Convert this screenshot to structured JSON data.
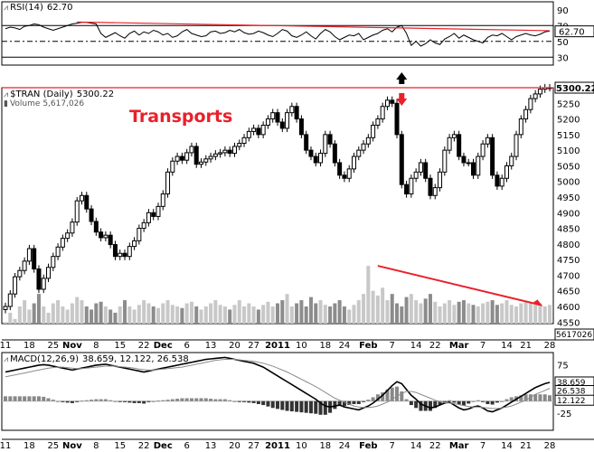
{
  "rsi": {
    "label": "RSI(14)",
    "value": "62.70",
    "ticks": [
      "90",
      "70",
      "50",
      "30"
    ],
    "tag": "62.70"
  },
  "price": {
    "label": "$TRAN (Daily)",
    "value": "5300.22",
    "tag": "5300.22",
    "volume_label": "Volume",
    "volume_value": "5,617,026",
    "volume_tag": "5617026",
    "annotation": "Transports",
    "ticks": [
      "5250",
      "5200",
      "5150",
      "5100",
      "5050",
      "5000",
      "4950",
      "4900",
      "4850",
      "4800",
      "4750",
      "4700",
      "4650",
      "4600",
      "4550"
    ]
  },
  "macd": {
    "label": "MACD(12,26,9)",
    "values": "38.659, 12.122, 26.538",
    "ticks": [
      "75",
      "25",
      "-25"
    ],
    "tags": [
      "38.659",
      "26.538",
      "12.122"
    ]
  },
  "xaxis": {
    "labels": [
      "11",
      "18",
      "25",
      "Nov",
      "8",
      "15",
      "22",
      "Dec",
      "6",
      "13",
      "20",
      "27",
      "2011",
      "10",
      "18",
      "24",
      "Feb",
      "7",
      "14",
      "22",
      "Mar",
      "7",
      "14",
      "21",
      "28"
    ]
  },
  "colors": {
    "resistance": "#e8212b",
    "up": "#ffffff",
    "down": "#000000",
    "volume_up": "#c8c8c8",
    "volume_down": "#8c8c8c",
    "macd_line": "#000000",
    "signal_line": "#8c8c8c",
    "arrow_up": "#000000",
    "arrow_down": "#e8212b"
  },
  "chart_data": [
    {
      "type": "line",
      "name": "RSI(14)",
      "ylim": [
        20,
        100
      ],
      "x_range": [
        0,
        114
      ],
      "values": [
        66,
        68,
        67,
        65,
        69,
        70,
        72,
        71,
        68,
        66,
        64,
        66,
        68,
        70,
        72,
        73,
        74,
        74,
        73,
        72,
        60,
        55,
        58,
        61,
        57,
        54,
        60,
        63,
        58,
        62,
        60,
        64,
        62,
        58,
        60,
        55,
        57,
        62,
        65,
        60,
        58,
        56,
        57,
        62,
        63,
        60,
        61,
        64,
        62,
        65,
        61,
        59,
        60,
        63,
        61,
        58,
        56,
        60,
        65,
        63,
        57,
        55,
        58,
        62,
        57,
        53,
        60,
        65,
        62,
        56,
        52,
        55,
        58,
        57,
        60,
        52,
        55,
        58,
        60,
        64,
        66,
        62,
        68,
        70,
        60,
        45,
        50,
        44,
        47,
        52,
        48,
        46,
        53,
        56,
        60,
        54,
        58,
        55,
        52,
        50,
        48,
        55,
        58,
        57,
        60,
        56,
        52,
        56,
        58,
        60,
        58,
        57,
        59,
        62,
        63
      ]
    },
    {
      "type": "candlestick",
      "name": "$TRAN (Daily)",
      "ylim": [
        4545,
        5300
      ],
      "x_range": [
        0,
        114
      ],
      "close": [
        4600,
        4640,
        4695,
        4715,
        4745,
        4785,
        4720,
        4655,
        4690,
        4725,
        4760,
        4790,
        4818,
        4835,
        4870,
        4938,
        4955,
        4912,
        4872,
        4838,
        4820,
        4828,
        4798,
        4760,
        4770,
        4760,
        4792,
        4810,
        4850,
        4868,
        4900,
        4888,
        4920,
        4960,
        5030,
        5065,
        5080,
        5068,
        5092,
        5112,
        5055,
        5062,
        5072,
        5080,
        5088,
        5092,
        5100,
        5090,
        5112,
        5122,
        5140,
        5160,
        5170,
        5150,
        5180,
        5200,
        5220,
        5190,
        5170,
        5220,
        5240,
        5200,
        5150,
        5100,
        5080,
        5060,
        5090,
        5150,
        5120,
        5060,
        5020,
        5010,
        5040,
        5080,
        5100,
        5120,
        5140,
        5180,
        5200,
        5240,
        5260,
        5250,
        5150,
        4990,
        4960,
        5010,
        5030,
        5060,
        5010,
        4955,
        4980,
        5030,
        5100,
        5140,
        5150,
        5080,
        5060,
        5060,
        5020,
        5080,
        5120,
        5140,
        5020,
        4985,
        5010,
        5050,
        5080,
        5150,
        5200,
        5230,
        5265,
        5280,
        5295,
        5300,
        5300
      ],
      "volume": [
        4550,
        4580,
        4560,
        4600,
        4620,
        4590,
        4610,
        4640,
        4600,
        4580,
        4610,
        4620,
        4600,
        4590,
        4610,
        4630,
        4620,
        4600,
        4590,
        4610,
        4615,
        4600,
        4590,
        4580,
        4600,
        4620,
        4600,
        4590,
        4605,
        4620,
        4610,
        4600,
        4595,
        4610,
        4620,
        4605,
        4600,
        4595,
        4610,
        4615,
        4600,
        4590,
        4600,
        4610,
        4620,
        4605,
        4600,
        4590,
        4605,
        4620,
        4600,
        4610,
        4600,
        4590,
        4605,
        4615,
        4600,
        4610,
        4620,
        4640,
        4600,
        4610,
        4620,
        4600,
        4630,
        4610,
        4620,
        4605,
        4600,
        4610,
        4620,
        4600,
        4590,
        4605,
        4620,
        4640,
        4730,
        4650,
        4635,
        4660,
        4620,
        4640,
        4610,
        4600,
        4630,
        4640,
        4620,
        4610,
        4625,
        4640,
        4615,
        4600,
        4610,
        4620,
        4605,
        4615,
        4620,
        4610,
        4605,
        4600,
        4610,
        4615,
        4620,
        4605,
        4610,
        4620,
        4605,
        4600,
        4610,
        4615,
        4610,
        4605,
        4610,
        4600,
        4605
      ]
    },
    {
      "type": "line",
      "name": "MACD(12,26,9)",
      "ylim": [
        -60,
        100
      ],
      "x_range": [
        0,
        114
      ],
      "series": [
        {
          "name": "MACD",
          "values": [
            60,
            62,
            64,
            66,
            68,
            70,
            72,
            74,
            75,
            74,
            72,
            70,
            68,
            66,
            64,
            66,
            68,
            70,
            72,
            74,
            75,
            76,
            74,
            72,
            70,
            68,
            66,
            64,
            62,
            60,
            62,
            64,
            66,
            68,
            70,
            72,
            74,
            76,
            78,
            80,
            82,
            84,
            86,
            87,
            88,
            89,
            90,
            88,
            86,
            84,
            82,
            80,
            78,
            74,
            70,
            64,
            58,
            52,
            46,
            40,
            34,
            28,
            22,
            16,
            10,
            4,
            -4,
            -10,
            -12,
            -10,
            -8,
            -12,
            -14,
            -16,
            -18,
            -14,
            -10,
            -4,
            4,
            12,
            22,
            32,
            40,
            36,
            24,
            12,
            4,
            -6,
            -10,
            -14,
            -12,
            -8,
            -4,
            -2,
            -8,
            -14,
            -18,
            -16,
            -12,
            -10,
            -14,
            -20,
            -22,
            -18,
            -14,
            -8,
            -2,
            4,
            10,
            16,
            22,
            28,
            32,
            36,
            38.659
          ]
        },
        {
          "name": "Signal",
          "values": [
            50,
            52,
            54,
            56,
            58,
            60,
            62,
            64,
            66,
            68,
            69,
            70,
            70,
            69,
            68,
            67,
            67,
            68,
            69,
            70,
            71,
            72,
            72,
            72,
            71,
            70,
            69,
            68,
            66,
            65,
            64,
            64,
            65,
            66,
            67,
            68,
            69,
            70,
            72,
            74,
            76,
            78,
            80,
            82,
            84,
            85,
            86,
            86,
            86,
            85,
            84,
            83,
            82,
            80,
            78,
            75,
            72,
            68,
            64,
            60,
            55,
            50,
            45,
            40,
            35,
            30,
            24,
            18,
            12,
            6,
            2,
            -2,
            -6,
            -10,
            -12,
            -13,
            -13,
            -12,
            -10,
            -6,
            -2,
            4,
            10,
            16,
            20,
            20,
            18,
            14,
            10,
            6,
            2,
            -1,
            -3,
            -4,
            -5,
            -7,
            -9,
            -11,
            -12,
            -12,
            -13,
            -14,
            -15,
            -15,
            -14,
            -12,
            -10,
            -6,
            -2,
            2,
            8,
            14,
            18,
            22,
            26.538
          ]
        }
      ],
      "histogram": [
        10,
        10,
        10,
        10,
        10,
        10,
        10,
        10,
        9,
        6,
        3,
        0,
        -2,
        -3,
        -4,
        -1,
        1,
        2,
        3,
        4,
        4,
        4,
        2,
        0,
        -1,
        -2,
        -3,
        -4,
        -4,
        -5,
        -2,
        0,
        1,
        2,
        3,
        4,
        5,
        6,
        6,
        6,
        6,
        6,
        6,
        5,
        4,
        4,
        4,
        2,
        0,
        -1,
        -2,
        -3,
        -4,
        -6,
        -8,
        -11,
        -14,
        -16,
        -18,
        -20,
        -21,
        -22,
        -23,
        -24,
        -25,
        -26,
        -28,
        -28,
        -24,
        -16,
        -10,
        -10,
        -8,
        -6,
        -6,
        -1,
        3,
        8,
        14,
        18,
        24,
        28,
        30,
        20,
        4,
        -8,
        -14,
        -20,
        -20,
        -20,
        -14,
        -7,
        -1,
        2,
        -3,
        -7,
        -9,
        -5,
        0,
        2,
        -1,
        -6,
        -7,
        -3,
        0,
        4,
        8,
        10,
        12,
        14,
        14,
        14,
        14,
        14,
        12.122
      ]
    }
  ]
}
